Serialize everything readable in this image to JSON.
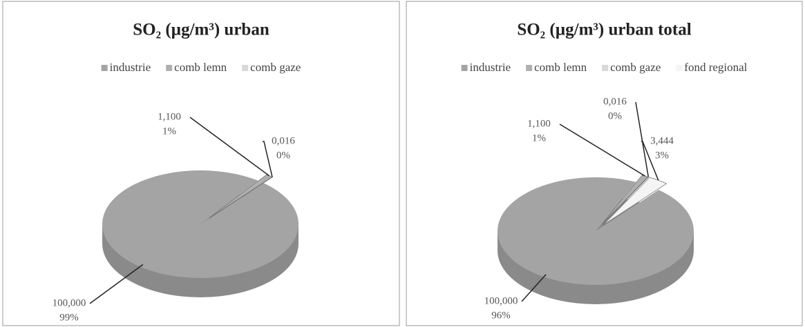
{
  "chart_data": [
    {
      "type": "pie3d",
      "title": "SO₂ (µg/m³) urban",
      "categories": [
        "industrie",
        "comb lemn",
        "comb gaze"
      ],
      "values": [
        100,
        1.1,
        0.016
      ],
      "value_labels": [
        "100,000",
        "1,100",
        "0,016"
      ],
      "percent_labels": [
        "99%",
        "1%",
        "0%"
      ],
      "colors": [
        "#a4a4a4",
        "#b0b0b0",
        "#d8d8d8"
      ]
    },
    {
      "type": "pie3d",
      "title": "SO₂ (µg/m³) urban total",
      "categories": [
        "industrie",
        "comb lemn",
        "comb gaze",
        "fond regional"
      ],
      "values": [
        100,
        1.1,
        0.016,
        3.444
      ],
      "value_labels": [
        "100,000",
        "1,100",
        "0,016",
        "3,444"
      ],
      "percent_labels": [
        "96%",
        "1%",
        "0%",
        "3%"
      ],
      "colors": [
        "#a4a4a4",
        "#b0b0b0",
        "#d8d8d8",
        "#f4f4f4"
      ]
    }
  ]
}
